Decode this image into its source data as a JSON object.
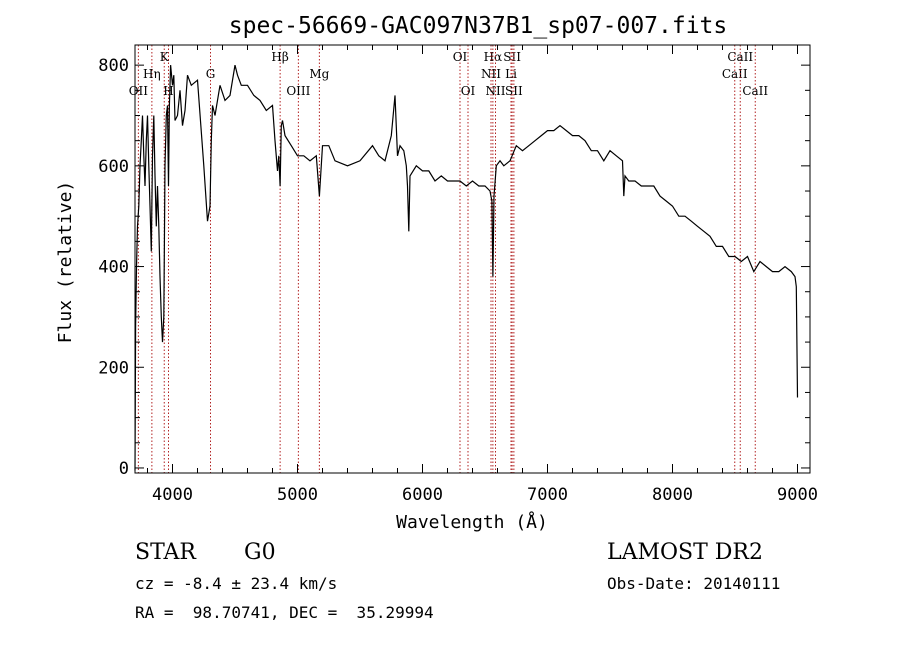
{
  "chart_data": {
    "type": "line",
    "title": "spec-56669-GAC097N37B1_sp07-007.fits",
    "xlabel": "Wavelength (Å)",
    "ylabel": "Flux (relative)",
    "xlim": [
      3700,
      9100
    ],
    "ylim": [
      -10,
      840
    ],
    "xticks": [
      4000,
      5000,
      6000,
      7000,
      8000,
      9000
    ],
    "yticks": [
      0,
      200,
      400,
      600,
      800
    ],
    "series": [
      {
        "x": [
          3700,
          3705,
          3712,
          3720,
          3730,
          3740,
          3750,
          3760,
          3770,
          3780,
          3790,
          3800,
          3810,
          3820,
          3830,
          3840,
          3850,
          3860,
          3870,
          3880,
          3890,
          3900,
          3910,
          3920,
          3930,
          3933,
          3940,
          3950,
          3960,
          3968,
          3975,
          3985,
          4000,
          4010,
          4020,
          4040,
          4060,
          4080,
          4100,
          4120,
          4150,
          4200,
          4250,
          4280,
          4300,
          4310,
          4320,
          4340,
          4380,
          4420,
          4460,
          4500,
          4520,
          4550,
          4600,
          4650,
          4700,
          4750,
          4800,
          4820,
          4840,
          4850,
          4861,
          4870,
          4880,
          4900,
          4950,
          5000,
          5050,
          5100,
          5150,
          5175,
          5200,
          5250,
          5300,
          5400,
          5500,
          5600,
          5650,
          5700,
          5750,
          5780,
          5800,
          5820,
          5850,
          5870,
          5880,
          5890,
          5900,
          5950,
          6000,
          6050,
          6100,
          6150,
          6200,
          6250,
          6300,
          6350,
          6400,
          6450,
          6500,
          6540,
          6555,
          6563,
          6572,
          6590,
          6620,
          6650,
          6700,
          6750,
          6800,
          6850,
          6900,
          6950,
          7000,
          7050,
          7100,
          7150,
          7200,
          7250,
          7300,
          7350,
          7400,
          7450,
          7500,
          7550,
          7600,
          7610,
          7620,
          7650,
          7700,
          7750,
          7800,
          7850,
          7900,
          7950,
          8000,
          8050,
          8100,
          8150,
          8200,
          8250,
          8300,
          8350,
          8400,
          8450,
          8500,
          8550,
          8600,
          8650,
          8700,
          8750,
          8800,
          8850,
          8900,
          8950,
          8980,
          8990,
          9000
        ],
        "y": [
          -5,
          280,
          400,
          480,
          520,
          600,
          650,
          700,
          620,
          560,
          650,
          700,
          600,
          520,
          430,
          620,
          700,
          580,
          480,
          560,
          480,
          380,
          300,
          250,
          300,
          370,
          600,
          700,
          720,
          560,
          720,
          800,
          760,
          780,
          690,
          700,
          750,
          680,
          710,
          780,
          760,
          770,
          600,
          490,
          520,
          650,
          720,
          700,
          760,
          730,
          740,
          800,
          780,
          760,
          760,
          740,
          730,
          710,
          720,
          650,
          590,
          620,
          560,
          680,
          690,
          660,
          640,
          620,
          620,
          610,
          620,
          540,
          640,
          640,
          610,
          600,
          610,
          640,
          620,
          610,
          660,
          740,
          620,
          640,
          630,
          600,
          560,
          470,
          580,
          600,
          590,
          590,
          570,
          580,
          570,
          570,
          570,
          560,
          570,
          560,
          560,
          550,
          530,
          380,
          540,
          600,
          610,
          600,
          610,
          640,
          630,
          640,
          650,
          660,
          670,
          670,
          680,
          670,
          660,
          660,
          650,
          630,
          630,
          610,
          630,
          620,
          610,
          540,
          580,
          570,
          570,
          560,
          560,
          560,
          540,
          530,
          520,
          500,
          500,
          490,
          480,
          470,
          460,
          440,
          440,
          420,
          420,
          410,
          420,
          390,
          410,
          400,
          390,
          390,
          400,
          390,
          380,
          360,
          140
        ]
      }
    ],
    "lines": [
      {
        "label": "OII",
        "x": 3727,
        "row": 3
      },
      {
        "label": "Hη",
        "x": 3835,
        "row": 2
      },
      {
        "label": "K",
        "x": 3934,
        "row": 1
      },
      {
        "label": "H",
        "x": 3968,
        "row": 3
      },
      {
        "label": "G",
        "x": 4304,
        "row": 2
      },
      {
        "label": "Hβ",
        "x": 4861,
        "row": 1
      },
      {
        "label": "OIII",
        "x": 5007,
        "row": 3
      },
      {
        "label": "Mg",
        "x": 5175,
        "row": 2
      },
      {
        "label": "OI",
        "x": 6300,
        "row": 1
      },
      {
        "label": "OI",
        "x": 6364,
        "row": 3
      },
      {
        "label": "Hα",
        "x": 6563,
        "row": 1
      },
      {
        "label": "NII",
        "x": 6548,
        "row": 2
      },
      {
        "label": "NII",
        "x": 6584,
        "row": 3
      },
      {
        "label": "SII",
        "x": 6717,
        "row": 1
      },
      {
        "label": "Li",
        "x": 6708,
        "row": 2
      },
      {
        "label": "SII",
        "x": 6731,
        "row": 3
      },
      {
        "label": "CaII",
        "x": 8498,
        "row": 2
      },
      {
        "label": "CaII",
        "x": 8542,
        "row": 1
      },
      {
        "label": "CaII",
        "x": 8662,
        "row": 3
      }
    ],
    "line_color": "#000000",
    "marker_color": "#b22222"
  },
  "info": {
    "class": "STAR",
    "subclass": "G0",
    "survey": "LAMOST DR2",
    "cz": "cz = -8.4 ± 23.4 km/s",
    "obs_date": "Obs-Date: 20140111",
    "radec": "RA =  98.70741, DEC =  35.29994"
  }
}
